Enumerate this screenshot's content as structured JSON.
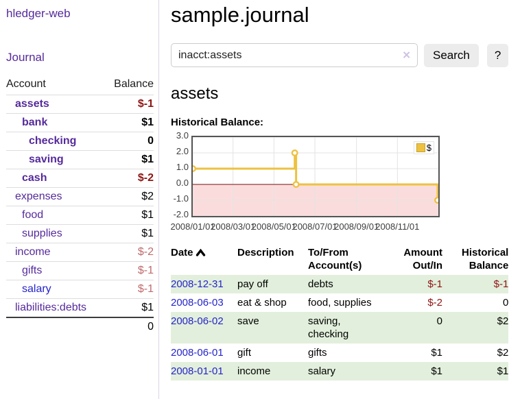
{
  "colors": {
    "link_purple": "#552a9b",
    "link_blue": "#2424cc",
    "negative_strong": "#8e1414",
    "negative_soft": "#bf6a6d",
    "row_shade_green": "#e2efdc",
    "series_gold": "#edc240",
    "series_gold_border": "#c7a12b",
    "negative_region_pink": "#fbdcdc",
    "zero_line_red": "#7a0b0b",
    "grid_gray": "#e3e3e3",
    "chart_border": "#545454",
    "button_gray": "#ececec"
  },
  "sidebar": {
    "brand": "hledger-web",
    "journal_label": "Journal",
    "accounts": {
      "header_account": "Account",
      "header_balance": "Balance",
      "rows": [
        {
          "name": "assets",
          "balance": "$-1",
          "depth": 1,
          "bold": true,
          "link": "purple",
          "bal_color": "strong"
        },
        {
          "name": "bank",
          "balance": "$1",
          "depth": 2,
          "bold": true,
          "link": "purple",
          "bal_color": "black"
        },
        {
          "name": "checking",
          "balance": "0",
          "depth": 3,
          "bold": true,
          "link": "purple",
          "bal_color": "black"
        },
        {
          "name": "saving",
          "balance": "$1",
          "depth": 3,
          "bold": true,
          "link": "purple",
          "bal_color": "black"
        },
        {
          "name": "cash",
          "balance": "$-2",
          "depth": 2,
          "bold": true,
          "link": "purple",
          "bal_color": "strong"
        },
        {
          "name": "expenses",
          "balance": "$2",
          "depth": 1,
          "bold": false,
          "link": "purple",
          "bal_color": "black"
        },
        {
          "name": "food",
          "balance": "$1",
          "depth": 2,
          "bold": false,
          "link": "purple",
          "bal_color": "black"
        },
        {
          "name": "supplies",
          "balance": "$1",
          "depth": 2,
          "bold": false,
          "link": "purple",
          "bal_color": "black"
        },
        {
          "name": "income",
          "balance": "$-2",
          "depth": 1,
          "bold": false,
          "link": "purple",
          "bal_color": "soft"
        },
        {
          "name": "gifts",
          "balance": "$-1",
          "depth": 2,
          "bold": false,
          "link": "purple",
          "bal_color": "soft"
        },
        {
          "name": "salary",
          "balance": "$-1",
          "depth": 2,
          "bold": false,
          "link": "blue",
          "bal_color": "soft"
        },
        {
          "name": "liabilities:debts",
          "balance": "$1",
          "depth": 1,
          "bold": false,
          "link": "purple",
          "bal_color": "black"
        }
      ],
      "total": "0"
    }
  },
  "main": {
    "title": "sample.journal",
    "search": {
      "value": "inacct:assets",
      "clear_glyph": "✕",
      "button_label": "Search",
      "help_label": "?"
    },
    "account_heading": "assets",
    "chart_label": "Historical Balance:"
  },
  "chart_data": {
    "type": "line",
    "style": "step",
    "title": "Historical Balance",
    "series": [
      {
        "name": "$",
        "color": "#edc240",
        "points": [
          {
            "x": "2008-01-01",
            "y": 1.0
          },
          {
            "x": "2008-06-01",
            "y": 2.0
          },
          {
            "x": "2008-06-03",
            "y": 0.0
          },
          {
            "x": "2008-12-31",
            "y": -1.0
          }
        ]
      }
    ],
    "xrange": [
      "2008-01-01",
      "2009-01-01"
    ],
    "ylim": [
      -2.0,
      3.0
    ],
    "yticks": [
      "3.0",
      "2.0",
      "1.0",
      "0.0",
      "-1.0",
      "-2.0"
    ],
    "xticks": [
      "2008/01/01",
      "2008/03/01",
      "2008/05/01",
      "2008/07/01",
      "2008/09/01",
      "2008/11/01"
    ],
    "grid": true,
    "legend_position": "top-right",
    "negative_region": {
      "from": -2.0,
      "to": 0.0,
      "fill": "#fbdcdc",
      "boundary_line": "#7a0b0b"
    }
  },
  "transactions": {
    "headers": {
      "date": "Date",
      "description": "Description",
      "accounts": "To/From Account(s)",
      "amount": "Amount Out/In",
      "balance": "Historical Balance"
    },
    "rows": [
      {
        "date": "2008-12-31",
        "description": "pay off",
        "accounts": "debts",
        "amount": "$-1",
        "balance": "$-1",
        "shaded": true
      },
      {
        "date": "2008-06-03",
        "description": "eat & shop",
        "accounts": "food, supplies",
        "amount": "$-2",
        "balance": "0",
        "shaded": false
      },
      {
        "date": "2008-06-02",
        "description": "save",
        "accounts": "saving, checking",
        "amount": "0",
        "balance": "$2",
        "shaded": true
      },
      {
        "date": "2008-06-01",
        "description": "gift",
        "accounts": "gifts",
        "amount": "$1",
        "balance": "$2",
        "shaded": false
      },
      {
        "date": "2008-01-01",
        "description": "income",
        "accounts": "salary",
        "amount": "$1",
        "balance": "$1",
        "shaded": true
      }
    ]
  }
}
